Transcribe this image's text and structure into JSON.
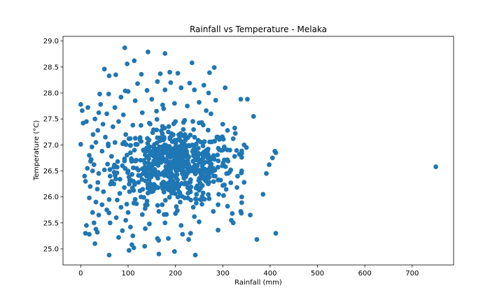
{
  "chart_data": {
    "type": "scatter",
    "title": "Rainfall vs Temperature - Melaka",
    "xlabel": "Rainfall (mm)",
    "ylabel": "Temperature (°C)",
    "xlim": [
      -37.5,
      787.5
    ],
    "ylim": [
      24.69,
      29.09
    ],
    "xticks": [
      0,
      100,
      200,
      300,
      400,
      500,
      600,
      700
    ],
    "yticks": [
      25.0,
      25.5,
      26.0,
      26.5,
      27.0,
      27.5,
      28.0,
      28.5,
      29.0
    ],
    "xtick_labels": [
      "0",
      "100",
      "200",
      "300",
      "400",
      "500",
      "600",
      "700"
    ],
    "ytick_labels": [
      "25.0",
      "25.5",
      "26.0",
      "26.5",
      "27.0",
      "27.5",
      "28.0",
      "28.5",
      "29.0"
    ],
    "grid": false,
    "marker_color": "#1f77b4",
    "series": [
      {
        "points": [
          [
            93,
            28.87
          ],
          [
            142,
            28.79
          ],
          [
            178,
            28.76
          ],
          [
            113,
            28.62
          ],
          [
            235,
            28.58
          ],
          [
            282,
            28.49
          ],
          [
            50,
            28.46
          ],
          [
            98,
            28.56
          ],
          [
            74,
            28.35
          ],
          [
            60,
            28.33
          ],
          [
            128,
            28.36
          ],
          [
            168,
            28.37
          ],
          [
            188,
            28.4
          ],
          [
            205,
            28.38
          ],
          [
            272,
            28.39
          ],
          [
            120,
            28.18
          ],
          [
            162,
            28.22
          ],
          [
            190,
            28.2
          ],
          [
            230,
            28.19
          ],
          [
            260,
            28.15
          ],
          [
            305,
            28.1
          ],
          [
            40,
            27.98
          ],
          [
            59,
            27.98
          ],
          [
            94,
            28.04
          ],
          [
            100,
            28.03
          ],
          [
            140,
            28.05
          ],
          [
            178,
            28.06
          ],
          [
            212,
            28.1
          ],
          [
            240,
            28.06
          ],
          [
            270,
            28.0
          ],
          [
            42,
            27.78
          ],
          [
            72,
            27.72
          ],
          [
            85,
            27.92
          ],
          [
            115,
            27.85
          ],
          [
            150,
            27.88
          ],
          [
            198,
            27.8
          ],
          [
            225,
            27.75
          ],
          [
            250,
            27.82
          ],
          [
            285,
            27.86
          ],
          [
            338,
            27.88
          ],
          [
            352,
            27.88
          ],
          [
            0,
            27.78
          ],
          [
            3,
            27.66
          ],
          [
            15,
            27.72
          ],
          [
            38,
            27.62
          ],
          [
            55,
            27.6
          ],
          [
            90,
            27.58
          ],
          [
            130,
            27.62
          ],
          [
            160,
            27.65
          ],
          [
            175,
            27.7
          ],
          [
            265,
            27.66
          ],
          [
            275,
            27.6
          ],
          [
            365,
            27.55
          ],
          [
            5,
            27.42
          ],
          [
            12,
            27.45
          ],
          [
            30,
            27.5
          ],
          [
            47,
            27.4
          ],
          [
            68,
            27.35
          ],
          [
            80,
            27.45
          ],
          [
            110,
            27.38
          ],
          [
            145,
            27.42
          ],
          [
            200,
            27.45
          ],
          [
            300,
            27.4
          ],
          [
            310,
            27.28
          ],
          [
            26,
            27.2
          ],
          [
            32,
            27.05
          ],
          [
            36,
            27.28
          ],
          [
            52,
            27.15
          ],
          [
            58,
            27.02
          ],
          [
            95,
            27.2
          ],
          [
            125,
            27.1
          ],
          [
            185,
            27.25
          ],
          [
            220,
            27.2
          ],
          [
            290,
            27.15
          ],
          [
            322,
            27.12
          ],
          [
            345,
            27.0
          ],
          [
            350,
            26.95
          ],
          [
            18,
            26.8
          ],
          [
            22,
            26.72
          ],
          [
            28,
            26.62
          ],
          [
            45,
            26.88
          ],
          [
            65,
            26.78
          ],
          [
            78,
            26.68
          ],
          [
            105,
            26.85
          ],
          [
            135,
            26.9
          ],
          [
            170,
            26.82
          ],
          [
            205,
            26.88
          ],
          [
            240,
            26.8
          ],
          [
            315,
            26.9
          ],
          [
            325,
            26.78
          ],
          [
            335,
            26.82
          ],
          [
            410,
            26.88
          ],
          [
            412,
            26.85
          ],
          [
            8,
            26.4
          ],
          [
            14,
            26.55
          ],
          [
            25,
            26.5
          ],
          [
            38,
            26.45
          ],
          [
            50,
            26.52
          ],
          [
            62,
            26.4
          ],
          [
            88,
            26.6
          ],
          [
            118,
            26.55
          ],
          [
            148,
            26.5
          ],
          [
            180,
            26.58
          ],
          [
            210,
            26.6
          ],
          [
            245,
            26.52
          ],
          [
            280,
            26.55
          ],
          [
            398,
            26.62
          ],
          [
            392,
            26.45
          ],
          [
            405,
            26.75
          ],
          [
            750,
            26.58
          ],
          [
            10,
            26.3
          ],
          [
            20,
            26.2
          ],
          [
            35,
            26.15
          ],
          [
            48,
            26.1
          ],
          [
            70,
            26.25
          ],
          [
            92,
            26.18
          ],
          [
            122,
            26.28
          ],
          [
            158,
            26.2
          ],
          [
            195,
            26.25
          ],
          [
            230,
            26.15
          ],
          [
            265,
            26.3
          ],
          [
            300,
            26.22
          ],
          [
            330,
            26.18
          ],
          [
            345,
            26.28
          ],
          [
            18,
            25.98
          ],
          [
            32,
            25.9
          ],
          [
            45,
            25.85
          ],
          [
            60,
            25.95
          ],
          [
            85,
            25.8
          ],
          [
            112,
            25.88
          ],
          [
            140,
            25.92
          ],
          [
            172,
            25.85
          ],
          [
            210,
            25.9
          ],
          [
            255,
            25.95
          ],
          [
            290,
            25.85
          ],
          [
            310,
            25.82
          ],
          [
            385,
            26.05
          ],
          [
            25,
            25.7
          ],
          [
            38,
            25.65
          ],
          [
            55,
            25.75
          ],
          [
            75,
            25.6
          ],
          [
            100,
            25.7
          ],
          [
            130,
            25.66
          ],
          [
            165,
            25.72
          ],
          [
            200,
            25.68
          ],
          [
            240,
            25.62
          ],
          [
            280,
            25.72
          ],
          [
            320,
            25.68
          ],
          [
            338,
            25.72
          ],
          [
            358,
            25.65
          ],
          [
            12,
            25.45
          ],
          [
            28,
            25.5
          ],
          [
            32,
            25.38
          ],
          [
            62,
            25.5
          ],
          [
            95,
            25.55
          ],
          [
            105,
            25.42
          ],
          [
            145,
            25.48
          ],
          [
            178,
            25.5
          ],
          [
            212,
            25.45
          ],
          [
            250,
            25.52
          ],
          [
            318,
            25.55
          ],
          [
            322,
            25.5
          ],
          [
            10,
            25.3
          ],
          [
            18,
            25.28
          ],
          [
            35,
            25.32
          ],
          [
            80,
            25.22
          ],
          [
            88,
            25.35
          ],
          [
            110,
            25.25
          ],
          [
            162,
            25.2
          ],
          [
            215,
            25.28
          ],
          [
            232,
            25.3
          ],
          [
            290,
            25.36
          ],
          [
            372,
            25.18
          ],
          [
            412,
            25.3
          ],
          [
            30,
            25.1
          ],
          [
            108,
            25.08
          ],
          [
            112,
            25.02
          ],
          [
            135,
            25.05
          ],
          [
            185,
            25.2
          ],
          [
            228,
            25.18
          ],
          [
            102,
            24.97
          ],
          [
            165,
            24.9
          ],
          [
            198,
            24.95
          ],
          [
            242,
            24.88
          ],
          [
            60,
            24.88
          ]
        ]
      }
    ],
    "dense_cluster": {
      "x_range": [
        60,
        320
      ],
      "y_range": [
        25.9,
        27.4
      ],
      "center": [
        200,
        26.6
      ],
      "count": 620
    }
  }
}
